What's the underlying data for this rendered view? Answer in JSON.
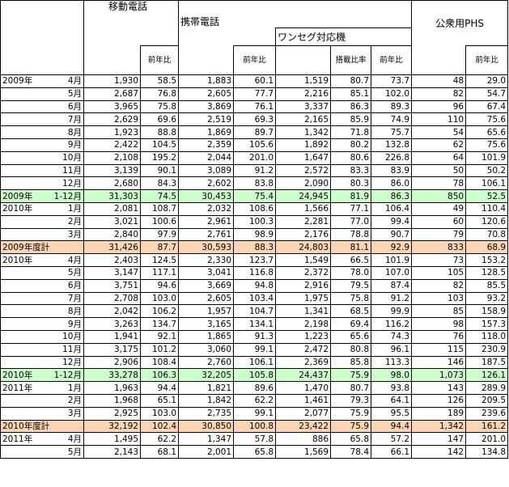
{
  "headers": {
    "mobile": "移動電話",
    "cellular": "携帯電話",
    "oneseg": "ワンセグ対応機",
    "phs": "公衆用PHS",
    "yoy": "前年比",
    "ratio": "搭載比率"
  },
  "table": {
    "rows": [
      {
        "year": "2009年",
        "period": "4月",
        "cells": [
          "1,930",
          "58.5",
          "1,883",
          "60.1",
          "1,519",
          "80.7",
          "73.7",
          "48",
          "29.0"
        ]
      },
      {
        "period": "5月",
        "cells": [
          "2,687",
          "76.8",
          "2,605",
          "77.7",
          "2,216",
          "85.1",
          "102.0",
          "82",
          "54.7"
        ]
      },
      {
        "period": "6月",
        "cells": [
          "3,965",
          "75.8",
          "3,869",
          "76.1",
          "3,337",
          "86.3",
          "89.3",
          "96",
          "67.4"
        ]
      },
      {
        "period": "7月",
        "cells": [
          "2,629",
          "69.6",
          "2,519",
          "69.3",
          "2,165",
          "85.9",
          "74.9",
          "110",
          "75.6"
        ]
      },
      {
        "period": "8月",
        "cells": [
          "1,923",
          "88.8",
          "1,869",
          "89.7",
          "1,342",
          "71.8",
          "75.7",
          "54",
          "65.6"
        ]
      },
      {
        "period": "9月",
        "cells": [
          "2,422",
          "104.5",
          "2,359",
          "105.6",
          "1,892",
          "80.2",
          "132.8",
          "62",
          "75.6"
        ]
      },
      {
        "period": "10月",
        "cells": [
          "2,108",
          "195.2",
          "2,044",
          "201.0",
          "1,647",
          "80.6",
          "226.8",
          "64",
          "101.9"
        ]
      },
      {
        "period": "11月",
        "cells": [
          "3,139",
          "90.1",
          "3,089",
          "91.2",
          "2,572",
          "83.3",
          "83.9",
          "50",
          "50.2"
        ]
      },
      {
        "period": "12月",
        "cells": [
          "2,680",
          "84.3",
          "2,602",
          "83.8",
          "2,090",
          "80.3",
          "86.0",
          "78",
          "106.1"
        ]
      },
      {
        "year": "2009年",
        "period": "1-12月",
        "highlight": "green",
        "cells": [
          "31,303",
          "74.5",
          "30,453",
          "75.4",
          "24,945",
          "81.9",
          "86.3",
          "850",
          "52.5"
        ]
      },
      {
        "year": "2010年",
        "period": "1月",
        "cells": [
          "2,081",
          "108.7",
          "2,032",
          "108.6",
          "1,566",
          "77.1",
          "106.4",
          "49",
          "110.4"
        ]
      },
      {
        "period": "2月",
        "cells": [
          "3,021",
          "100.6",
          "2,961",
          "100.3",
          "2,281",
          "77.0",
          "99.4",
          "60",
          "120.6"
        ]
      },
      {
        "period": "3月",
        "cells": [
          "2,840",
          "97.9",
          "2,761",
          "98.9",
          "2,176",
          "78.8",
          "90.7",
          "79",
          "70.8"
        ]
      },
      {
        "label": "2009年度計",
        "highlight": "orange",
        "cells": [
          "31,426",
          "87.7",
          "30,593",
          "88.3",
          "24,803",
          "81.1",
          "92.9",
          "833",
          "68.9"
        ]
      },
      {
        "year": "2010年",
        "period": "4月",
        "cells": [
          "2,403",
          "124.5",
          "2,330",
          "123.7",
          "1,549",
          "66.5",
          "101.9",
          "73",
          "153.2"
        ]
      },
      {
        "period": "5月",
        "cells": [
          "3,147",
          "117.1",
          "3,041",
          "116.8",
          "2,372",
          "78.0",
          "107.0",
          "105",
          "128.5"
        ]
      },
      {
        "period": "6月",
        "cells": [
          "3,751",
          "94.6",
          "3,669",
          "94.8",
          "2,916",
          "79.5",
          "87.4",
          "82",
          "85.5"
        ]
      },
      {
        "period": "7月",
        "cells": [
          "2,708",
          "103.0",
          "2,605",
          "103.4",
          "1,975",
          "75.8",
          "91.2",
          "103",
          "93.2"
        ]
      },
      {
        "period": "8月",
        "cells": [
          "2,042",
          "106.2",
          "1,957",
          "104.7",
          "1,341",
          "68.5",
          "99.9",
          "85",
          "158.9"
        ]
      },
      {
        "period": "9月",
        "cells": [
          "3,263",
          "134.7",
          "3,165",
          "134.1",
          "2,198",
          "69.4",
          "116.2",
          "98",
          "157.3"
        ]
      },
      {
        "period": "10月",
        "cells": [
          "1,941",
          "92.1",
          "1,865",
          "91.3",
          "1,223",
          "65.6",
          "74.3",
          "76",
          "118.0"
        ]
      },
      {
        "period": "11月",
        "cells": [
          "3,175",
          "101.2",
          "3,060",
          "99.1",
          "2,472",
          "80.8",
          "96.1",
          "115",
          "230.9"
        ]
      },
      {
        "period": "12月",
        "cells": [
          "2,906",
          "108.4",
          "2,760",
          "106.1",
          "2,369",
          "85.8",
          "113.3",
          "146",
          "187.5"
        ]
      },
      {
        "year": "2010年",
        "period": "1-12月",
        "highlight": "green",
        "cells": [
          "33,278",
          "106.3",
          "32,205",
          "105.8",
          "24,437",
          "75.9",
          "98.0",
          "1,073",
          "126.1"
        ]
      },
      {
        "year": "2011年",
        "period": "1月",
        "cells": [
          "1,963",
          "94.4",
          "1,821",
          "89.6",
          "1,470",
          "80.7",
          "93.8",
          "143",
          "289.9"
        ]
      },
      {
        "period": "2月",
        "cells": [
          "1,968",
          "65.1",
          "1,842",
          "62.2",
          "1,461",
          "79.3",
          "64.1",
          "126",
          "209.5"
        ]
      },
      {
        "period": "3月",
        "cells": [
          "2,925",
          "103.0",
          "2,735",
          "99.1",
          "2,077",
          "75.9",
          "95.5",
          "189",
          "239.6"
        ]
      },
      {
        "label": "2010年度計",
        "highlight": "orange",
        "cells": [
          "32,192",
          "102.4",
          "30,850",
          "100.8",
          "23,422",
          "75.9",
          "94.4",
          "1,342",
          "161.2"
        ]
      },
      {
        "year": "2011年",
        "period": "4月",
        "cells": [
          "1,495",
          "62.2",
          "1,347",
          "57.8",
          "886",
          "65.8",
          "57.2",
          "147",
          "201.0"
        ]
      },
      {
        "period": "5月",
        "cells": [
          "2,143",
          "68.1",
          "2,001",
          "65.8",
          "1,569",
          "78.4",
          "66.1",
          "142",
          "134.8"
        ]
      }
    ]
  }
}
